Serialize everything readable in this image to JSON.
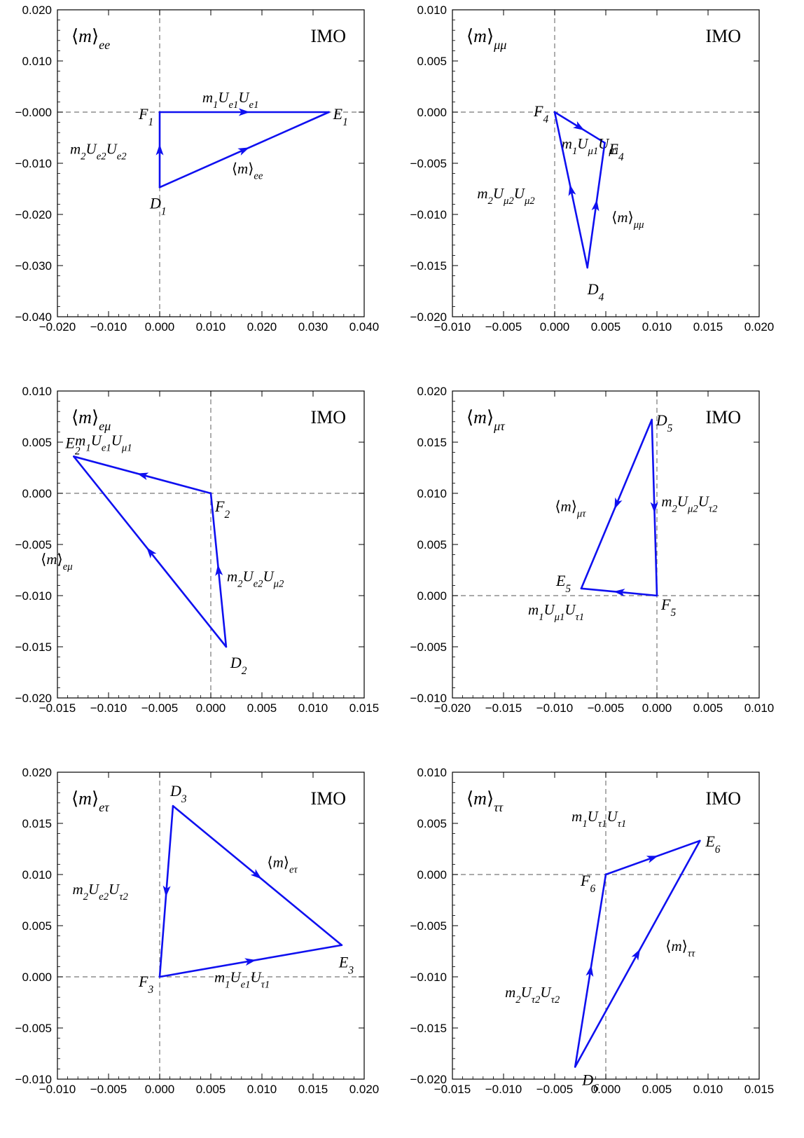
{
  "chart_data": [
    {
      "type": "line",
      "panel": 1,
      "title": {
        "base": "⟨m⟩",
        "sub": "ee"
      },
      "ordering": "IMO",
      "xlim": [
        -0.02,
        0.04
      ],
      "ylim": [
        -0.04,
        0.02
      ],
      "xticks": [
        "-0.020",
        "-0.010",
        "0.000",
        "0.010",
        "0.020",
        "0.030",
        "0.040"
      ],
      "yticks": [
        "-0.040",
        "-0.030",
        "-0.020",
        "-0.010",
        "-0.000",
        "0.010",
        "0.020"
      ],
      "points": {
        "D": {
          "x": 0.0,
          "y": -0.0147,
          "label": "D",
          "sub": "1"
        },
        "E": {
          "x": 0.0331,
          "y": 0.0,
          "label": "E",
          "sub": "1"
        },
        "F": {
          "x": 0.0,
          "y": 0.0,
          "label": "F",
          "sub": "1"
        }
      },
      "vectors": [
        {
          "from": "F",
          "to": "E",
          "label": {
            "parts": [
              [
                "m",
                ""
              ],
              [
                "1",
                "sub"
              ],
              [
                "U",
                ""
              ],
              [
                "e1",
                "sub"
              ],
              [
                "U",
                ""
              ],
              [
                "e1",
                "sub"
              ]
            ]
          }
        },
        {
          "from": "D",
          "to": "F",
          "label": {
            "parts": [
              [
                "m",
                ""
              ],
              [
                "2",
                "sub"
              ],
              [
                "U",
                ""
              ],
              [
                "e2",
                "sub"
              ],
              [
                "U",
                ""
              ],
              [
                "e2",
                "sub"
              ]
            ]
          }
        },
        {
          "from": "D",
          "to": "E",
          "label": {
            "parts": [
              [
                "⟨m⟩",
                ""
              ],
              [
                "ee",
                "sub"
              ]
            ]
          }
        }
      ]
    },
    {
      "type": "line",
      "panel": 2,
      "title": {
        "base": "⟨m⟩",
        "sub": "μμ"
      },
      "ordering": "IMO",
      "xlim": [
        -0.01,
        0.02
      ],
      "ylim": [
        -0.02,
        0.01
      ],
      "xticks": [
        "-0.010",
        "-0.005",
        "0.000",
        "0.005",
        "0.010",
        "0.015",
        "0.020"
      ],
      "yticks": [
        "-0.020",
        "-0.015",
        "-0.010",
        "-0.005",
        "0.000",
        "0.005",
        "0.010"
      ],
      "points": {
        "D": {
          "x": 0.0032,
          "y": -0.0152,
          "label": "D",
          "sub": "4"
        },
        "E": {
          "x": 0.0049,
          "y": -0.003,
          "label": "E",
          "sub": "4"
        },
        "F": {
          "x": 0.0,
          "y": 0.0,
          "label": "F",
          "sub": "4"
        }
      },
      "vectors": [
        {
          "from": "F",
          "to": "E",
          "label": {
            "parts": [
              [
                "m",
                ""
              ],
              [
                "1",
                "sub"
              ],
              [
                "U",
                ""
              ],
              [
                "μ1",
                "sub"
              ],
              [
                "U",
                ""
              ],
              [
                "μ1",
                "sub"
              ]
            ]
          }
        },
        {
          "from": "D",
          "to": "F",
          "label": {
            "parts": [
              [
                "m",
                ""
              ],
              [
                "2",
                "sub"
              ],
              [
                "U",
                ""
              ],
              [
                "μ2",
                "sub"
              ],
              [
                "U",
                ""
              ],
              [
                "μ2",
                "sub"
              ]
            ]
          }
        },
        {
          "from": "D",
          "to": "E",
          "label": {
            "parts": [
              [
                "⟨m⟩",
                ""
              ],
              [
                "μμ",
                "sub"
              ]
            ]
          }
        }
      ]
    },
    {
      "type": "line",
      "panel": 3,
      "title": {
        "base": "⟨m⟩",
        "sub": "eμ"
      },
      "ordering": "IMO",
      "xlim": [
        -0.015,
        0.015
      ],
      "ylim": [
        -0.02,
        0.01
      ],
      "xticks": [
        "-0.015",
        "-0.010",
        "-0.005",
        "0.000",
        "0.005",
        "0.010",
        "0.015"
      ],
      "yticks": [
        "-0.020",
        "-0.015",
        "-0.010",
        "-0.005",
        "0.000",
        "0.005",
        "0.010"
      ],
      "points": {
        "D": {
          "x": 0.0015,
          "y": -0.015,
          "label": "D",
          "sub": "2"
        },
        "E": {
          "x": -0.0134,
          "y": 0.0036,
          "label": "E",
          "sub": "2"
        },
        "F": {
          "x": 0.0,
          "y": 0.0,
          "label": "F",
          "sub": "2"
        }
      },
      "vectors": [
        {
          "from": "F",
          "to": "E",
          "label": {
            "parts": [
              [
                "m",
                ""
              ],
              [
                "1",
                "sub"
              ],
              [
                "U",
                ""
              ],
              [
                "e1",
                "sub"
              ],
              [
                "U",
                ""
              ],
              [
                "μ1",
                "sub"
              ]
            ]
          }
        },
        {
          "from": "D",
          "to": "F",
          "label": {
            "parts": [
              [
                "m",
                ""
              ],
              [
                "2",
                "sub"
              ],
              [
                "U",
                ""
              ],
              [
                "e2",
                "sub"
              ],
              [
                "U",
                ""
              ],
              [
                "μ2",
                "sub"
              ]
            ]
          }
        },
        {
          "from": "D",
          "to": "E",
          "label": {
            "parts": [
              [
                "⟨m⟩",
                ""
              ],
              [
                "eμ",
                "sub"
              ]
            ]
          }
        }
      ]
    },
    {
      "type": "line",
      "panel": 4,
      "title": {
        "base": "⟨m⟩",
        "sub": "μτ"
      },
      "ordering": "IMO",
      "xlim": [
        -0.02,
        0.01
      ],
      "ylim": [
        -0.01,
        0.02
      ],
      "xticks": [
        "-0.020",
        "-0.015",
        "-0.010",
        "-0.005",
        "0.000",
        "0.005",
        "0.010"
      ],
      "yticks": [
        "-0.010",
        "-0.005",
        "0.000",
        "0.005",
        "0.010",
        "0.015",
        "0.020"
      ],
      "points": {
        "D": {
          "x": -0.0005,
          "y": 0.0172,
          "label": "D",
          "sub": "5"
        },
        "E": {
          "x": -0.0074,
          "y": 0.0007,
          "label": "E",
          "sub": "5"
        },
        "F": {
          "x": 0.0,
          "y": 0.0,
          "label": "F",
          "sub": "5"
        }
      },
      "vectors": [
        {
          "from": "F",
          "to": "E",
          "label": {
            "parts": [
              [
                "m",
                ""
              ],
              [
                "1",
                "sub"
              ],
              [
                "U",
                ""
              ],
              [
                "μ1",
                "sub"
              ],
              [
                "U",
                ""
              ],
              [
                "τ1",
                "sub"
              ]
            ]
          }
        },
        {
          "from": "D",
          "to": "F",
          "label": {
            "parts": [
              [
                "m",
                ""
              ],
              [
                "2",
                "sub"
              ],
              [
                "U",
                ""
              ],
              [
                "μ2",
                "sub"
              ],
              [
                "U",
                ""
              ],
              [
                "τ2",
                "sub"
              ]
            ]
          }
        },
        {
          "from": "D",
          "to": "E",
          "label": {
            "parts": [
              [
                "⟨m⟩",
                ""
              ],
              [
                "μτ",
                "sub"
              ]
            ]
          }
        }
      ]
    },
    {
      "type": "line",
      "panel": 5,
      "title": {
        "base": "⟨m⟩",
        "sub": "eτ"
      },
      "ordering": "IMO",
      "xlim": [
        -0.01,
        0.02
      ],
      "ylim": [
        -0.01,
        0.02
      ],
      "xticks": [
        "-0.010",
        "-0.005",
        "0.000",
        "0.005",
        "0.010",
        "0.015",
        "0.020"
      ],
      "yticks": [
        "-0.010",
        "-0.005",
        "0.000",
        "0.005",
        "0.010",
        "0.015",
        "0.020"
      ],
      "points": {
        "D": {
          "x": 0.0013,
          "y": 0.0167,
          "label": "D",
          "sub": "3"
        },
        "E": {
          "x": 0.0178,
          "y": 0.0031,
          "label": "E",
          "sub": "3"
        },
        "F": {
          "x": 0.0,
          "y": 0.0,
          "label": "F",
          "sub": "3"
        }
      },
      "vectors": [
        {
          "from": "F",
          "to": "E",
          "label": {
            "parts": [
              [
                "m",
                ""
              ],
              [
                "1",
                "sub"
              ],
              [
                "U",
                ""
              ],
              [
                "e1",
                "sub"
              ],
              [
                "U",
                ""
              ],
              [
                "τ1",
                "sub"
              ]
            ]
          }
        },
        {
          "from": "D",
          "to": "F",
          "label": {
            "parts": [
              [
                "m",
                ""
              ],
              [
                "2",
                "sub"
              ],
              [
                "U",
                ""
              ],
              [
                "e2",
                "sub"
              ],
              [
                "U",
                ""
              ],
              [
                "τ2",
                "sub"
              ]
            ]
          }
        },
        {
          "from": "D",
          "to": "E",
          "label": {
            "parts": [
              [
                "⟨m⟩",
                ""
              ],
              [
                "eτ",
                "sub"
              ]
            ]
          }
        }
      ]
    },
    {
      "type": "line",
      "panel": 6,
      "title": {
        "base": "⟨m⟩",
        "sub": "ττ"
      },
      "ordering": "IMO",
      "xlim": [
        -0.015,
        0.015
      ],
      "ylim": [
        -0.02,
        0.01
      ],
      "xticks": [
        "-0.015",
        "-0.010",
        "-0.005",
        "0.000",
        "0.005",
        "0.010",
        "0.015"
      ],
      "yticks": [
        "-0.020",
        "-0.015",
        "-0.010",
        "-0.005",
        "0.000",
        "0.005",
        "0.010"
      ],
      "points": {
        "D": {
          "x": -0.003,
          "y": -0.0188,
          "label": "D",
          "sub": "6"
        },
        "E": {
          "x": 0.0092,
          "y": 0.0033,
          "label": "E",
          "sub": "6"
        },
        "F": {
          "x": 0.0,
          "y": 0.0,
          "label": "F",
          "sub": "6"
        }
      },
      "vectors": [
        {
          "from": "F",
          "to": "E",
          "label": {
            "parts": [
              [
                "m",
                ""
              ],
              [
                "1",
                "sub"
              ],
              [
                "U",
                ""
              ],
              [
                "τ1",
                "sub"
              ],
              [
                "U",
                ""
              ],
              [
                "τ1",
                "sub"
              ]
            ]
          }
        },
        {
          "from": "D",
          "to": "F",
          "label": {
            "parts": [
              [
                "m",
                ""
              ],
              [
                "2",
                "sub"
              ],
              [
                "U",
                ""
              ],
              [
                "τ2",
                "sub"
              ],
              [
                "U",
                ""
              ],
              [
                "τ2",
                "sub"
              ]
            ]
          }
        },
        {
          "from": "D",
          "to": "E",
          "label": {
            "parts": [
              [
                "⟨m⟩",
                ""
              ],
              [
                "ττ",
                "sub"
              ]
            ]
          }
        }
      ]
    }
  ],
  "colors": {
    "vector": "#0f10f0",
    "guide": "#777777",
    "frame": "#000000"
  }
}
